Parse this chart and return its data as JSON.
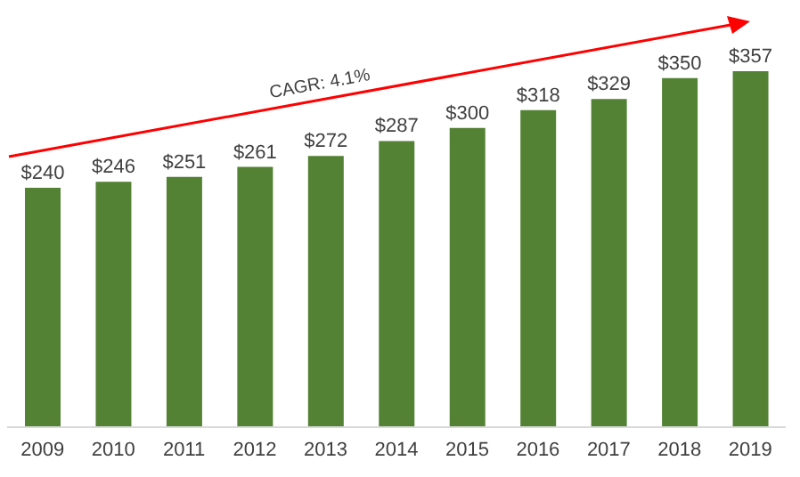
{
  "chart_data": {
    "type": "bar",
    "categories": [
      "2009",
      "2010",
      "2011",
      "2012",
      "2013",
      "2014",
      "2015",
      "2016",
      "2017",
      "2018",
      "2019"
    ],
    "values": [
      240,
      246,
      251,
      261,
      272,
      287,
      300,
      318,
      329,
      350,
      357
    ],
    "value_labels": [
      "$240",
      "$246",
      "$251",
      "$261",
      "$272",
      "$287",
      "$300",
      "$318",
      "$329",
      "$350",
      "$357"
    ],
    "color": "#548235",
    "annotations": [
      "CAGR: 4.1%"
    ]
  }
}
